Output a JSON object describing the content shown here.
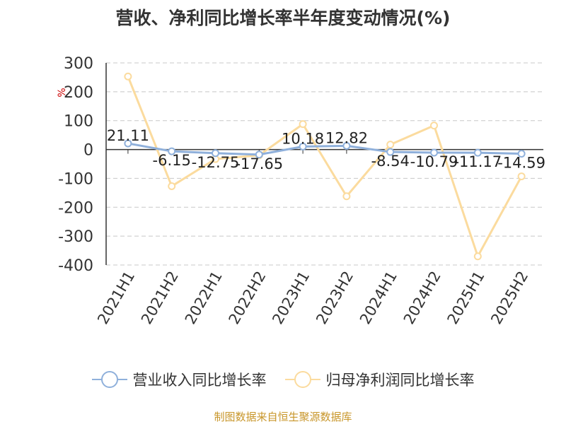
{
  "title": "营收、净利同比增长率半年度变动情况(%)",
  "source": "制图数据来自恒生聚源数据库",
  "colors": {
    "revenue": "#8fb0db",
    "profit": "#fbdb9e",
    "unit": "#cc0000",
    "source": "#c8962a"
  },
  "chart_data": {
    "type": "line",
    "title": "营收、净利同比增长率半年度变动情况(%)",
    "ylabel": "%",
    "ylim": [
      -400,
      300
    ],
    "yticks": [
      300,
      200,
      100,
      0,
      -100,
      -200,
      -300,
      -400
    ],
    "grid": true,
    "legend_position": "bottom",
    "categories": [
      "2021H1",
      "2021H2",
      "2022H1",
      "2022H2",
      "2023H1",
      "2023H2",
      "2024H1",
      "2024H2",
      "2025H1",
      "2025H2"
    ],
    "series": [
      {
        "name": "营业收入同比增长率",
        "values": [
          21.11,
          -6.15,
          -12.75,
          -17.65,
          10.18,
          12.82,
          -8.54,
          -10.79,
          -11.17,
          -14.59
        ],
        "labels": [
          "21.11",
          "-6.15",
          "-12.75",
          "-17.65",
          "10.18",
          "12.82",
          "-8.54",
          "-10.79",
          "-11.17",
          "-14.59"
        ]
      },
      {
        "name": "归母净利润同比增长率",
        "values": [
          253,
          -127,
          -33,
          -20,
          88,
          -162,
          17,
          83,
          -370,
          -93
        ]
      }
    ]
  }
}
